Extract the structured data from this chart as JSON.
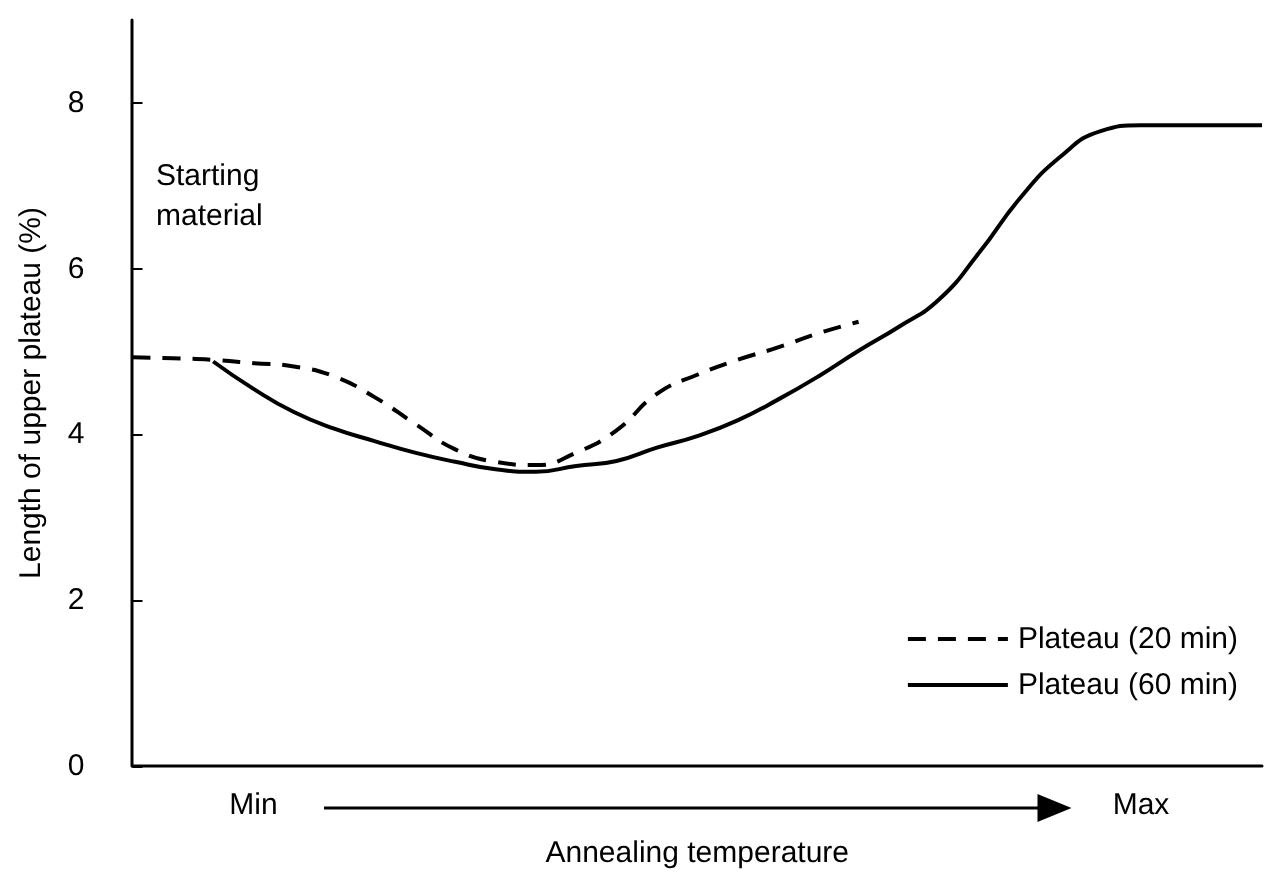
{
  "chart_data": {
    "type": "line",
    "xlabel": "Annealing temperature",
    "ylabel": "Length of upper plateau (%)",
    "annotations": [
      "Starting material"
    ],
    "categories": [
      null,
      null,
      null,
      "Min",
      null,
      null,
      null,
      null,
      null,
      null,
      null,
      null,
      null,
      null,
      null,
      null,
      null,
      null,
      null,
      null,
      null,
      null,
      null,
      null,
      null,
      "Max",
      null,
      null,
      null
    ],
    "ylim": [
      0,
      9
    ],
    "yticks": [
      0,
      2,
      4,
      6,
      8
    ],
    "grid": false,
    "legend": "bottom right",
    "marker": "none",
    "series": [
      {
        "name": "Plateau (20 min)",
        "color": "#000000",
        "line_style": "dashed",
        "values": [
          4.93,
          4.92,
          4.9,
          4.86,
          4.82,
          4.7,
          4.45,
          4.13,
          3.82,
          3.67,
          3.63,
          3.78,
          4.05,
          4.49,
          4.72,
          4.9,
          5.05,
          5.22,
          5.36,
          null,
          null,
          null,
          null,
          null,
          null,
          null,
          null,
          null,
          null
        ]
      },
      {
        "name": "Plateau (60 min)",
        "color": "#000000",
        "line_style": "solid",
        "values": [
          null,
          null,
          4.88,
          4.55,
          4.27,
          4.07,
          3.92,
          3.78,
          3.67,
          3.58,
          3.55,
          3.62,
          3.68,
          3.84,
          3.98,
          4.17,
          4.42,
          4.7,
          5.01,
          5.3,
          5.63,
          6.2,
          6.85,
          7.35,
          7.66,
          7.73,
          7.73,
          7.73,
          7.73
        ]
      }
    ]
  }
}
